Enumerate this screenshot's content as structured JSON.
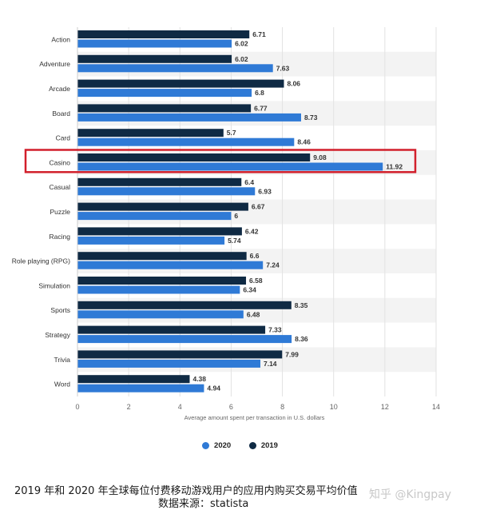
{
  "chart_data": {
    "type": "bar",
    "orientation": "horizontal",
    "categories": [
      "Action",
      "Adventure",
      "Arcade",
      "Board",
      "Card",
      "Casino",
      "Casual",
      "Puzzle",
      "Racing",
      "Role playing (RPG)",
      "Simulation",
      "Sports",
      "Strategy",
      "Trivia",
      "Word"
    ],
    "series": [
      {
        "name": "2019",
        "color": "#0f2a44",
        "values": [
          6.71,
          6.02,
          8.06,
          6.77,
          5.7,
          9.08,
          6.4,
          6.67,
          6.42,
          6.6,
          6.58,
          8.35,
          7.33,
          7.99,
          4.38
        ]
      },
      {
        "name": "2020",
        "color": "#2f7ad6",
        "values": [
          6.02,
          7.63,
          6.8,
          8.73,
          8.46,
          11.92,
          6.93,
          6,
          5.74,
          7.24,
          6.34,
          6.48,
          8.36,
          7.14,
          4.94
        ]
      }
    ],
    "value_labels_2019": [
      "6.71",
      "6.02",
      "8.06",
      "6.77",
      "5.7",
      "9.08",
      "6.4",
      "6.67",
      "6.42",
      "6.6",
      "6.58",
      "8.35",
      "7.33",
      "7.99",
      "4.38"
    ],
    "value_labels_2020": [
      "6.02",
      "7.63",
      "6.8",
      "8.73",
      "8.46",
      "11.92",
      "6.93",
      "6",
      "5.74",
      "7.24",
      "6.34",
      "6.48",
      "8.36",
      "7.14",
      "4.94"
    ],
    "xlabel": "Average amount spent per transaction in U.S. dollars",
    "xlim": [
      0,
      14
    ],
    "xticks": [
      "0",
      "2",
      "4",
      "6",
      "8",
      "10",
      "12",
      "14"
    ],
    "grid": true,
    "legend_position": "bottom",
    "highlighted_category": "Casino",
    "highlight_color": "#d21f2b"
  },
  "legend": {
    "item_2020": "2020",
    "item_2019": "2019",
    "color_2020": "#2f7ad6",
    "color_2019": "#0f2a44"
  },
  "caption": {
    "line1": "2019 年和 2020 年全球每位付费移动游戏用户的应用内购买交易平均价值",
    "line2": "数据来源：statista"
  },
  "watermark": "知乎 @Kingpay"
}
